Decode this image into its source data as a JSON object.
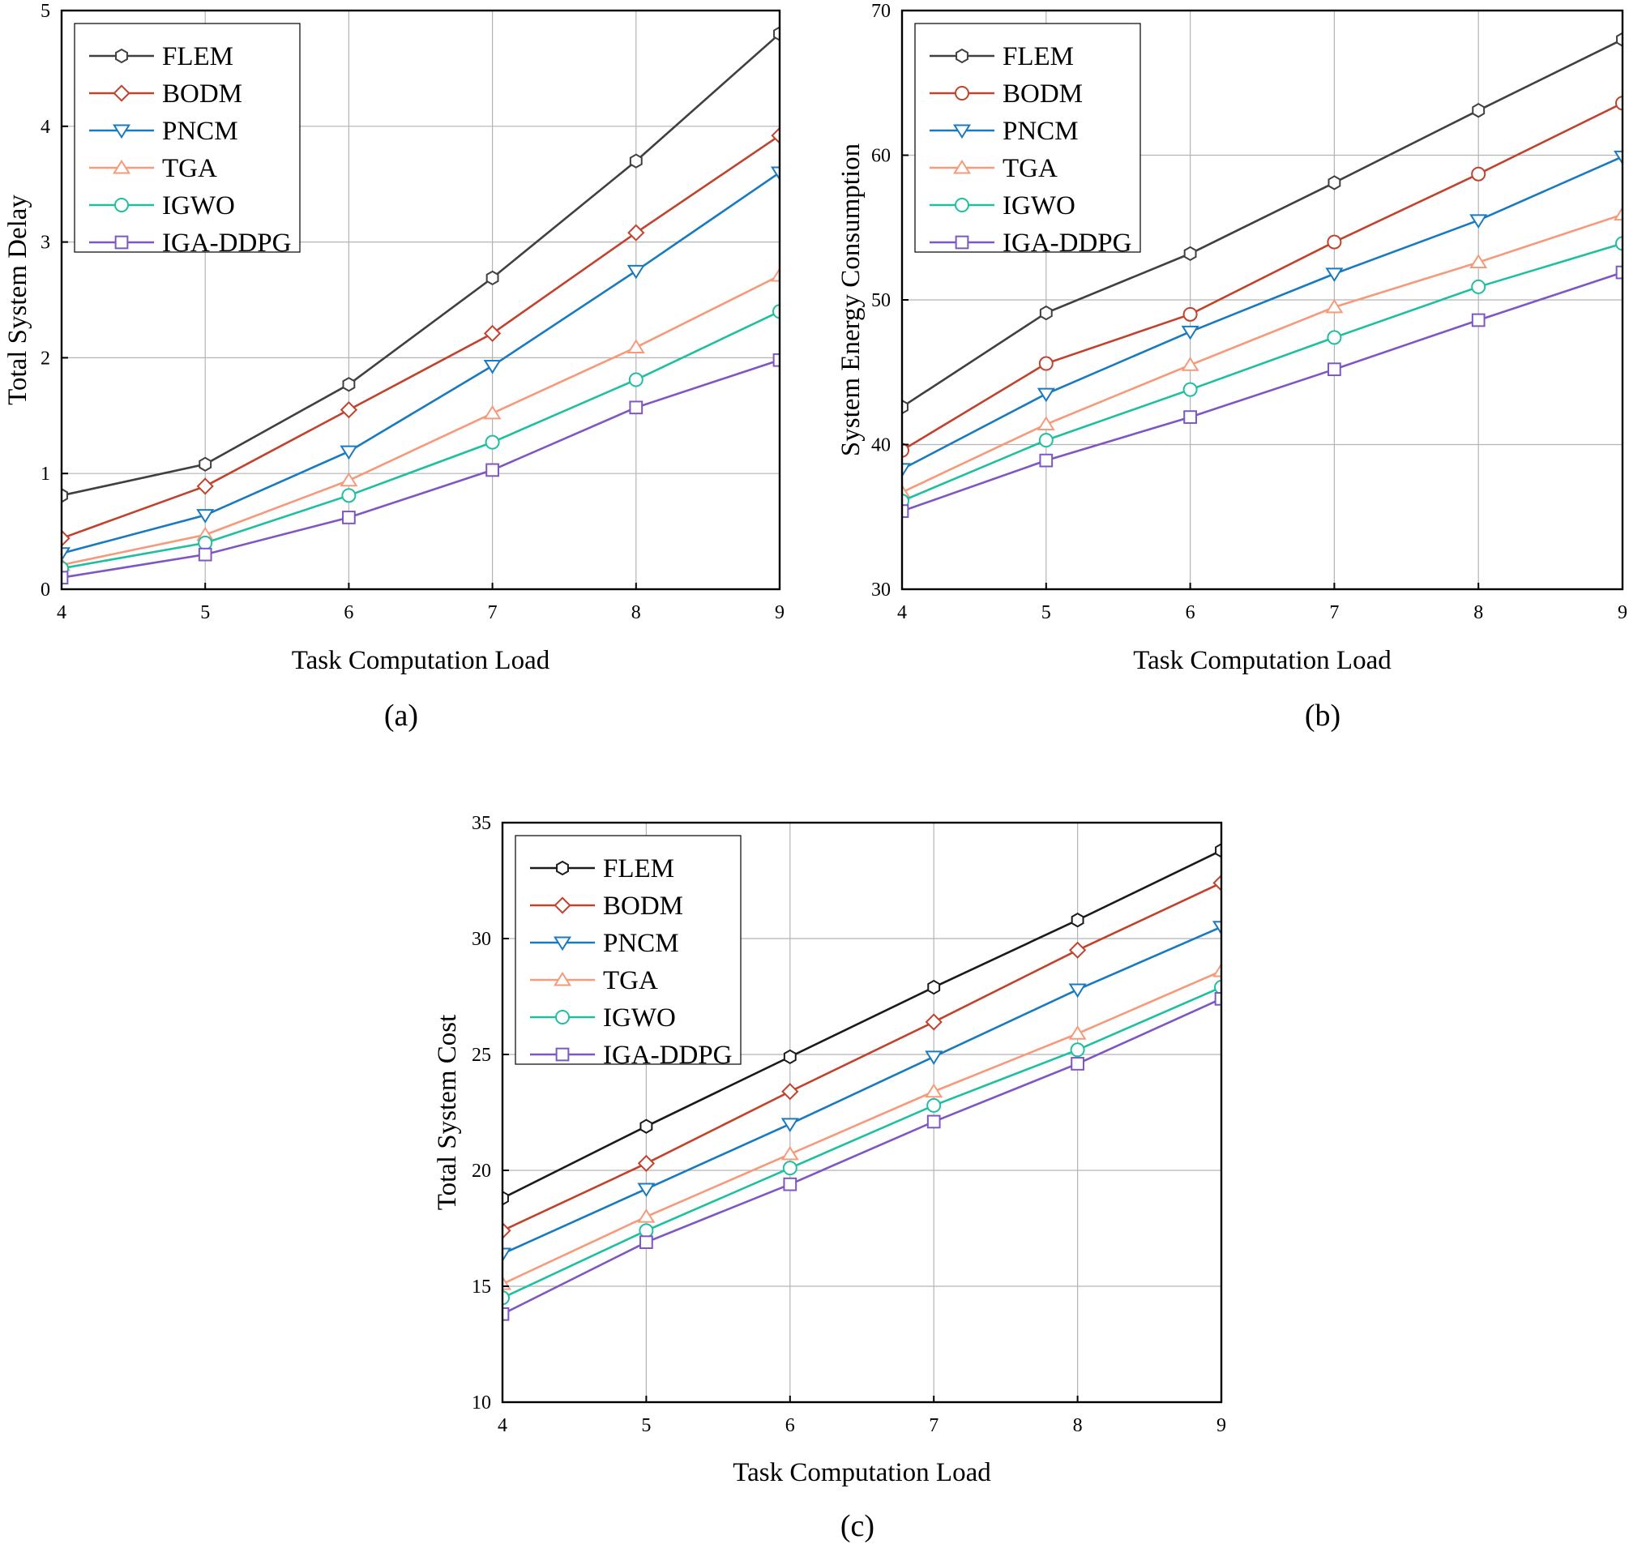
{
  "figure": {
    "legend_placement": "top-left",
    "grid": true
  },
  "chart_data": [
    {
      "id": "a",
      "type": "line",
      "panel_label": "(a)",
      "title": "",
      "xlabel": "Task Computation Load",
      "ylabel": "Total System Delay",
      "xlim": [
        4,
        9
      ],
      "ylim": [
        0,
        5
      ],
      "xticks": [
        4,
        5,
        6,
        7,
        8,
        9
      ],
      "yticks": [
        0,
        1,
        2,
        3,
        4,
        5
      ],
      "x": [
        4,
        5,
        6,
        7,
        8,
        9
      ],
      "series": [
        {
          "name": "FLEM",
          "color": "#404040",
          "marker": "hexagon",
          "values": [
            0.81,
            1.08,
            1.77,
            2.69,
            3.7,
            4.8
          ]
        },
        {
          "name": "BODM",
          "color": "#c0432e",
          "marker": "diamond",
          "values": [
            0.44,
            0.89,
            1.55,
            2.21,
            3.08,
            3.92
          ]
        },
        {
          "name": "PNCM",
          "color": "#1a7abf",
          "marker": "triangle-down",
          "values": [
            0.31,
            0.64,
            1.19,
            1.93,
            2.75,
            3.6
          ]
        },
        {
          "name": "TGA",
          "color": "#f59a7a",
          "marker": "triangle-up",
          "values": [
            0.21,
            0.47,
            0.94,
            1.52,
            2.09,
            2.71
          ]
        },
        {
          "name": "IGWO",
          "color": "#1fbf9f",
          "marker": "circle",
          "values": [
            0.18,
            0.4,
            0.81,
            1.27,
            1.81,
            2.4
          ]
        },
        {
          "name": "IGA-DDPG",
          "color": "#7e57c2",
          "marker": "square",
          "values": [
            0.1,
            0.3,
            0.62,
            1.03,
            1.57,
            1.98
          ]
        }
      ]
    },
    {
      "id": "b",
      "type": "line",
      "panel_label": "(b)",
      "title": "",
      "xlabel": "Task Computation Load",
      "ylabel": "System Energy Consumption",
      "xlim": [
        4,
        9
      ],
      "ylim": [
        30,
        70
      ],
      "xticks": [
        4,
        5,
        6,
        7,
        8,
        9
      ],
      "yticks": [
        30,
        40,
        50,
        60,
        70
      ],
      "x": [
        4,
        5,
        6,
        7,
        8,
        9
      ],
      "series": [
        {
          "name": "FLEM",
          "color": "#404040",
          "marker": "hexagon",
          "values": [
            42.6,
            49.1,
            53.2,
            58.1,
            63.1,
            68.0
          ]
        },
        {
          "name": "BODM",
          "color": "#c0432e",
          "marker": "circle",
          "values": [
            39.6,
            45.6,
            49.0,
            54.0,
            58.7,
            63.6
          ]
        },
        {
          "name": "PNCM",
          "color": "#1a7abf",
          "marker": "triangle-down",
          "values": [
            38.3,
            43.5,
            47.8,
            51.8,
            55.5,
            59.9
          ]
        },
        {
          "name": "TGA",
          "color": "#f59a7a",
          "marker": "triangle-up",
          "values": [
            36.7,
            41.4,
            45.5,
            49.5,
            52.6,
            55.9
          ]
        },
        {
          "name": "IGWO",
          "color": "#1fbf9f",
          "marker": "circle",
          "values": [
            36.1,
            40.3,
            43.8,
            47.4,
            50.9,
            53.9
          ]
        },
        {
          "name": "IGA-DDPG",
          "color": "#7e57c2",
          "marker": "square",
          "values": [
            35.4,
            38.9,
            41.9,
            45.2,
            48.6,
            51.9
          ]
        }
      ]
    },
    {
      "id": "c",
      "type": "line",
      "panel_label": "(c)",
      "title": "",
      "xlabel": "Task Computation Load",
      "ylabel": "Total System Cost",
      "xlim": [
        4,
        9
      ],
      "ylim": [
        10,
        35
      ],
      "xticks": [
        4,
        5,
        6,
        7,
        8,
        9
      ],
      "yticks": [
        10,
        15,
        20,
        25,
        30,
        35
      ],
      "x": [
        4,
        5,
        6,
        7,
        8,
        9
      ],
      "series": [
        {
          "name": "FLEM",
          "color": "#1a1a1a",
          "marker": "hexagon",
          "values": [
            18.8,
            21.9,
            24.9,
            27.9,
            30.8,
            33.8
          ]
        },
        {
          "name": "BODM",
          "color": "#c0432e",
          "marker": "diamond",
          "values": [
            17.4,
            20.3,
            23.4,
            26.4,
            29.5,
            32.4
          ]
        },
        {
          "name": "PNCM",
          "color": "#1a7abf",
          "marker": "triangle-down",
          "values": [
            16.4,
            19.2,
            22.0,
            24.9,
            27.8,
            30.5
          ]
        },
        {
          "name": "TGA",
          "color": "#f59a7a",
          "marker": "triangle-up",
          "values": [
            15.1,
            18.0,
            20.7,
            23.4,
            25.9,
            28.6
          ]
        },
        {
          "name": "IGWO",
          "color": "#1fbf9f",
          "marker": "circle",
          "values": [
            14.5,
            17.4,
            20.1,
            22.8,
            25.2,
            27.9
          ]
        },
        {
          "name": "IGA-DDPG",
          "color": "#7e57c2",
          "marker": "square",
          "values": [
            13.8,
            16.9,
            19.4,
            22.1,
            24.6,
            27.4
          ]
        }
      ]
    }
  ]
}
